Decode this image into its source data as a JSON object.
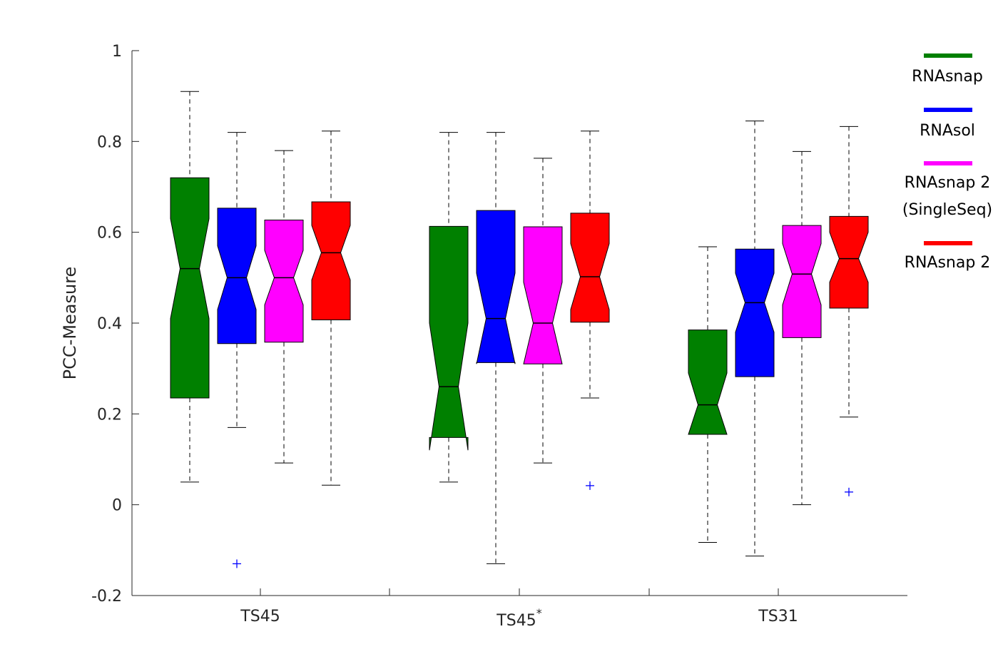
{
  "chart_data": {
    "type": "box",
    "ylabel": "PCC-Measure",
    "ylim": [
      -0.2,
      1
    ],
    "yticks": [
      "-0.2",
      "0",
      "0.2",
      "0.4",
      "0.6",
      "0.8",
      "1"
    ],
    "group_labels": [
      {
        "text": "TS45",
        "sup": ""
      },
      {
        "text": "TS45",
        "sup": "*"
      },
      {
        "text": "TS31",
        "sup": ""
      }
    ],
    "series": [
      {
        "name": "RNAsnap",
        "color": "#008000"
      },
      {
        "name": "RNAsol",
        "color": "#0000ff"
      },
      {
        "name": "RNAsnap 2 (SingleSeq)",
        "color": "#ff00ff"
      },
      {
        "name": "RNAsnap 2",
        "color": "#ff0000"
      }
    ],
    "legend_labels": [
      [
        "RNAsnap"
      ],
      [
        "RNAsol"
      ],
      [
        "RNAsnap 2",
        "(SingleSeq)"
      ],
      [
        "RNAsnap 2"
      ]
    ],
    "boxes": [
      [
        {
          "min": 0.05,
          "q1": 0.235,
          "median": 0.52,
          "q3": 0.72,
          "max": 0.91,
          "notch": [
            0.41,
            0.63
          ],
          "outliers": []
        },
        {
          "min": 0.17,
          "q1": 0.355,
          "median": 0.5,
          "q3": 0.653,
          "max": 0.82,
          "notch": [
            0.43,
            0.57
          ],
          "outliers": [
            -0.13
          ]
        },
        {
          "min": 0.092,
          "q1": 0.358,
          "median": 0.5,
          "q3": 0.627,
          "max": 0.78,
          "notch": [
            0.44,
            0.56
          ],
          "outliers": []
        },
        {
          "min": 0.043,
          "q1": 0.407,
          "median": 0.555,
          "q3": 0.667,
          "max": 0.823,
          "notch": [
            0.495,
            0.615
          ],
          "outliers": []
        }
      ],
      [
        {
          "min": 0.05,
          "q1": 0.148,
          "median": 0.26,
          "q3": 0.613,
          "max": 0.82,
          "notch": [
            0.12,
            0.4
          ],
          "outliers": []
        },
        {
          "min": -0.13,
          "q1": 0.313,
          "median": 0.41,
          "q3": 0.648,
          "max": 0.82,
          "notch": [
            0.31,
            0.51
          ],
          "outliers": []
        },
        {
          "min": 0.092,
          "q1": 0.31,
          "median": 0.4,
          "q3": 0.612,
          "max": 0.763,
          "notch": [
            0.31,
            0.49
          ],
          "outliers": []
        },
        {
          "min": 0.235,
          "q1": 0.402,
          "median": 0.502,
          "q3": 0.642,
          "max": 0.823,
          "notch": [
            0.43,
            0.575
          ],
          "outliers": [
            0.042
          ]
        }
      ],
      [
        {
          "min": -0.083,
          "q1": 0.155,
          "median": 0.22,
          "q3": 0.385,
          "max": 0.568,
          "notch": [
            0.155,
            0.29
          ],
          "outliers": []
        },
        {
          "min": -0.113,
          "q1": 0.282,
          "median": 0.445,
          "q3": 0.563,
          "max": 0.845,
          "notch": [
            0.38,
            0.51
          ],
          "outliers": []
        },
        {
          "min": 0.0,
          "q1": 0.368,
          "median": 0.508,
          "q3": 0.615,
          "max": 0.778,
          "notch": [
            0.44,
            0.575
          ],
          "outliers": []
        },
        {
          "min": 0.193,
          "q1": 0.433,
          "median": 0.542,
          "q3": 0.635,
          "max": 0.833,
          "notch": [
            0.49,
            0.6
          ],
          "outliers": [
            0.028
          ]
        }
      ]
    ]
  }
}
